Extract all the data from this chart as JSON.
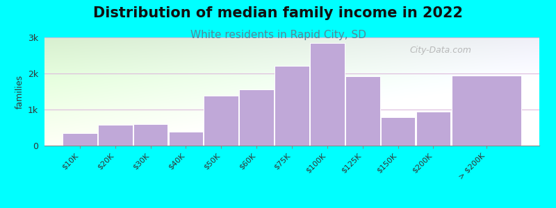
{
  "title": "Distribution of median family income in 2022",
  "subtitle": "White residents in Rapid City, SD",
  "ylabel": "families",
  "background_color": "#00FFFF",
  "plot_bg_left": "#d8f0d0",
  "plot_bg_right": "#f0f0f8",
  "bar_color": "#c0a8d8",
  "bar_edge_color": "#ffffff",
  "categories": [
    "$10K",
    "$20K",
    "$30K",
    "$40K",
    "$50K",
    "$60K",
    "$75K",
    "$100K",
    "$125K",
    "$150K",
    "$200K",
    "> $200K"
  ],
  "values": [
    350,
    580,
    590,
    390,
    1380,
    1560,
    2220,
    2840,
    1930,
    790,
    940,
    1950
  ],
  "widths": [
    1,
    1,
    1,
    1,
    1,
    1,
    1,
    1,
    1,
    1,
    1,
    2
  ],
  "ylim": [
    0,
    3000
  ],
  "yticks": [
    0,
    1000,
    2000,
    3000
  ],
  "ytick_labels": [
    "0",
    "1k",
    "2k",
    "3k"
  ],
  "watermark": "City-Data.com",
  "title_fontsize": 15,
  "subtitle_fontsize": 11,
  "subtitle_color": "#558899",
  "tick_label_fontsize": 8
}
